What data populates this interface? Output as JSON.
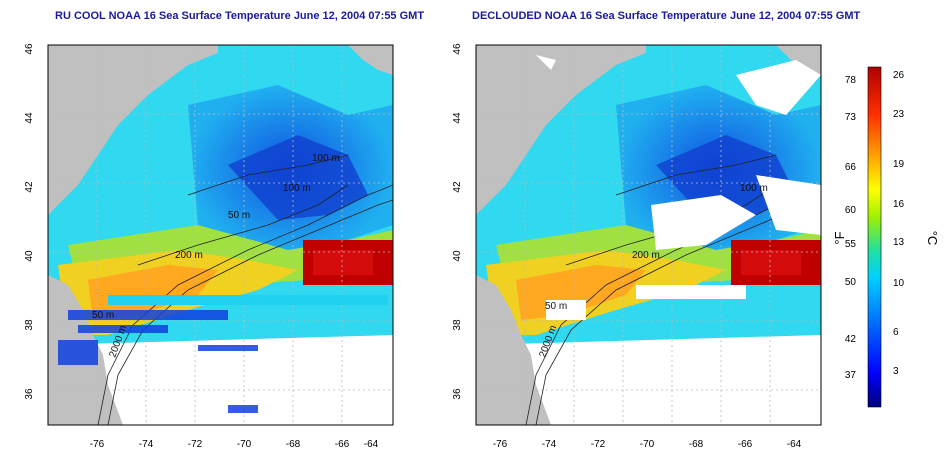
{
  "panels": [
    {
      "title": "RU COOL NOAA 16 Sea Surface Temperature June 12, 2004 07:55 GMT",
      "contour_labels": [
        "100 m",
        "100 m",
        "50 m",
        "200 m",
        "50 m",
        "2000 m"
      ]
    },
    {
      "title": "DECLOUDED NOAA 16 Sea Surface Temperature June 12, 2004 07:55 GMT",
      "contour_labels": [
        "100 m",
        "200 m",
        "50 m",
        "2000 m"
      ]
    }
  ],
  "axes": {
    "x_ticks": [
      "-76",
      "-74",
      "-72",
      "-70",
      "-68",
      "-66",
      "-64"
    ],
    "y_ticks": [
      "36",
      "38",
      "40",
      "42",
      "44",
      "46"
    ],
    "x_range": [
      -77,
      -63
    ],
    "y_range": [
      35,
      46
    ]
  },
  "colorbar": {
    "fahrenheit_label": "°F",
    "celsius_label": "°C",
    "fahrenheit_ticks": [
      "78",
      "73",
      "66",
      "60",
      "55",
      "50",
      "42",
      "37"
    ],
    "celsius_ticks": [
      "26",
      "23",
      "19",
      "16",
      "13",
      "10",
      "6",
      "3"
    ],
    "colors": [
      "#00007a",
      "#0000ff",
      "#0070ff",
      "#00d0ff",
      "#20e0a0",
      "#a0f000",
      "#ffff00",
      "#ffa000",
      "#ff3000",
      "#b00000"
    ]
  },
  "colors": {
    "land": "#c0c0c0",
    "cloud": "#ffffff",
    "grid": "#bbbbbb"
  }
}
